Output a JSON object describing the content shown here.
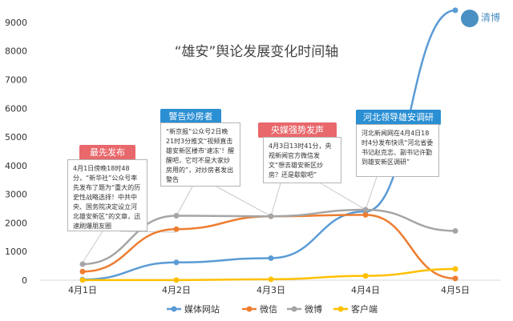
{
  "logo": {
    "text": "清博",
    "icon": "qingbo-logo-icon"
  },
  "chart_data": {
    "type": "line",
    "title": "“雄安”舆论发展变化时间轴",
    "categories": [
      "4月1日",
      "4月2日",
      "4月3日",
      "4月4日",
      "4月5日"
    ],
    "ylim": [
      0,
      9500
    ],
    "yticks": [
      0,
      1000,
      2000,
      3000,
      4000,
      5000,
      6000,
      7000,
      8000,
      9000
    ],
    "grid": false,
    "legend_position": "bottom",
    "series": [
      {
        "name": "媒体网站",
        "color": "#5b9bd5",
        "values": [
          20,
          620,
          770,
          2400,
          9420
        ]
      },
      {
        "name": "微信",
        "color": "#ed7d31",
        "values": [
          300,
          1780,
          2230,
          2280,
          60
        ]
      },
      {
        "name": "微博",
        "color": "#a5a5a5",
        "values": [
          560,
          2250,
          2230,
          2460,
          1720
        ]
      },
      {
        "name": "客户端",
        "color": "#ffc000",
        "values": [
          5,
          5,
          30,
          150,
          390
        ]
      }
    ]
  },
  "callouts": [
    {
      "tag": "最先发布",
      "tag_color": "#e8686c",
      "text": "4月1日傍晚18时48分，“新华社”公众号率先发布了题为“重大的历史性战略选择！中共中央、国务院决定设立河北雄安新区”的文章，迅速刷爆朋友圈"
    },
    {
      "tag": "警告炒房者",
      "tag_color": "#2a8fd3",
      "text": "“新京报”公众号2日晚21时3分推文“视频直击雄安新区楼市‘速冻’！醒醒吧，它可不是大家炒房用的”，对炒房者发出警告"
    },
    {
      "tag": "央媒强势发声",
      "tag_color": "#e8686c",
      "text": "4月3日13时41分，央视新闻官方微信发文“想去雄安新区炒房？还是歇歇吧”"
    },
    {
      "tag": "河北领导雄安调研",
      "tag_color": "#2a8fd3",
      "text": "河北新闻网在4月4日18时4分发布快讯“河北省委书记赵克志、副书记许勤到雄安新区调研”"
    }
  ]
}
